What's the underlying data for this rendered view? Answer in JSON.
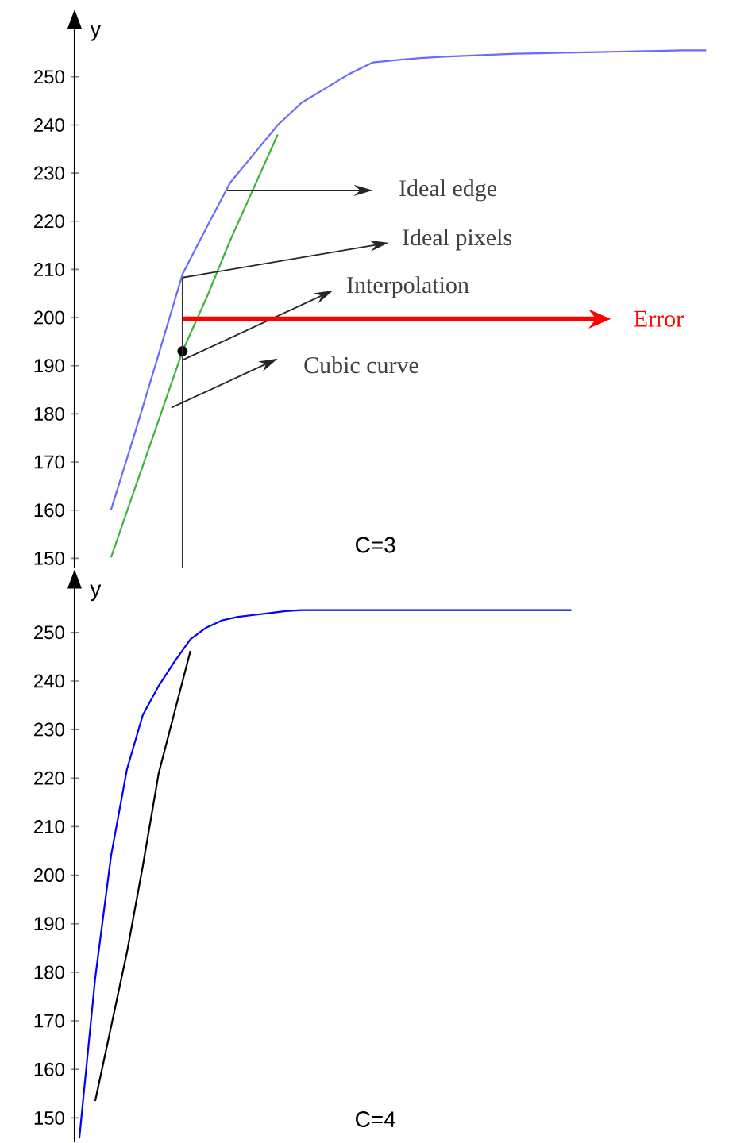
{
  "chart_data": [
    {
      "type": "line",
      "title": "C=3",
      "ylabel": "y",
      "tick_labels": "y",
      "ylim": [
        148,
        262
      ],
      "yticks": [
        150,
        160,
        170,
        180,
        190,
        200,
        210,
        220,
        230,
        240,
        250
      ],
      "categories": [
        null,
        null,
        null,
        null,
        null,
        null,
        null,
        null,
        null,
        null,
        null,
        null,
        null,
        null,
        null,
        null,
        null,
        null,
        null,
        null,
        null,
        null,
        null,
        null,
        null,
        null,
        null
      ],
      "series": [
        {
          "color": "#6a6aff",
          "values": [
            null,
            160.1,
            176,
            192.4,
            209,
            218.6,
            228,
            234,
            240,
            244.6,
            247.6,
            250.6,
            253,
            253.5,
            253.9,
            254.2,
            254.4,
            254.6,
            254.8,
            254.9,
            255,
            255.1,
            255.2,
            255.3,
            255.4,
            255.5,
            255.5
          ]
        },
        {
          "color": "#3cb43c",
          "values": [
            null,
            150.2,
            164.5,
            178.7,
            193,
            204,
            216,
            227,
            238,
            null,
            null,
            null,
            null,
            null,
            null,
            null,
            null,
            null,
            null,
            null,
            null,
            null,
            null,
            null,
            null,
            null,
            null
          ]
        },
        {
          "type": "scatter",
          "color": "#000000",
          "marker": "circle",
          "values": [
            null,
            null,
            null,
            null,
            193,
            null,
            null,
            null,
            null,
            null,
            null,
            null,
            null,
            null,
            null,
            null,
            null,
            null,
            null,
            null,
            null,
            null,
            null,
            null,
            null,
            null,
            null
          ]
        }
      ],
      "annotations": [
        "Ideal edge",
        "Ideal pixels",
        "Interpolation",
        "Cubic curve",
        "Error"
      ]
    },
    {
      "type": "line",
      "title": "C=4",
      "ylabel": "y",
      "tick_labels": "y",
      "ylim": [
        145,
        261
      ],
      "yticks": [
        150,
        160,
        170,
        180,
        190,
        200,
        210,
        220,
        230,
        240,
        250
      ],
      "categories": [
        null,
        null,
        null,
        null,
        null,
        null,
        null,
        null,
        null,
        null,
        null,
        null,
        null,
        null,
        null,
        null,
        null,
        null,
        null,
        null,
        null,
        null,
        null,
        null,
        null,
        null,
        null,
        null,
        null,
        null,
        null,
        null
      ],
      "series": [
        {
          "color": "#0000ff",
          "values": [
            145.8,
            178.8,
            204,
            221.8,
            233,
            239,
            244,
            248.6,
            251,
            252.5,
            253.2,
            253.6,
            254,
            254.4,
            254.6,
            254.6,
            254.6,
            254.6,
            254.6,
            254.6,
            254.6,
            254.6,
            254.6,
            254.6,
            254.6,
            254.6,
            254.6,
            254.6,
            254.6,
            254.6,
            254.6,
            254.6
          ]
        },
        {
          "color": "#000000",
          "values": [
            null,
            153.5,
            168.8,
            184.1,
            201.9,
            221,
            233.6,
            246.2,
            null,
            null,
            null,
            null,
            null,
            null,
            null,
            null,
            null,
            null,
            null,
            null,
            null,
            null,
            null,
            null,
            null,
            null,
            null,
            null,
            null,
            null,
            null,
            null
          ]
        }
      ]
    }
  ]
}
